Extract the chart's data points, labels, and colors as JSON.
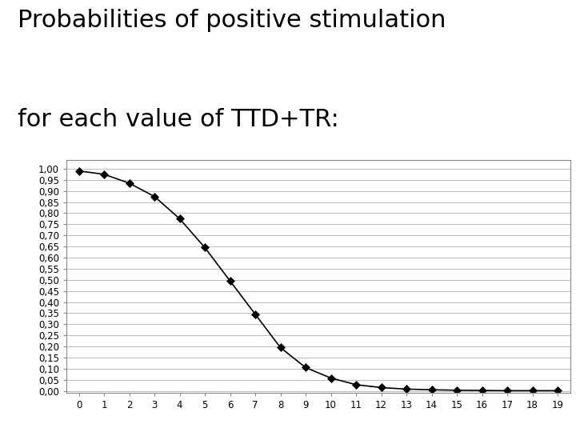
{
  "title_line1": "Probabilities of positive stimulation",
  "title_line2": "for each value of TTD+TR:",
  "x_values": [
    0,
    1,
    2,
    3,
    4,
    5,
    6,
    7,
    8,
    9,
    10,
    11,
    12,
    13,
    14,
    15,
    16,
    17,
    18,
    19
  ],
  "y_values": [
    0.99,
    0.975,
    0.935,
    0.875,
    0.775,
    0.645,
    0.495,
    0.345,
    0.195,
    0.105,
    0.058,
    0.028,
    0.015,
    0.008,
    0.005,
    0.003,
    0.002,
    0.001,
    0.001,
    0.001
  ],
  "yticks": [
    0.0,
    0.05,
    0.1,
    0.15,
    0.2,
    0.25,
    0.3,
    0.35,
    0.4,
    0.45,
    0.5,
    0.55,
    0.6,
    0.65,
    0.7,
    0.75,
    0.8,
    0.85,
    0.9,
    0.95,
    1.0
  ],
  "ytick_labels": [
    "0,00",
    "0,05",
    "0,10",
    "0,15",
    "0,20",
    "0,25",
    "0,30",
    "0,35",
    "0,40",
    "0,45",
    "0,50",
    "0,55",
    "0,60",
    "0,65",
    "0,70",
    "0,75",
    "0,80",
    "0,85",
    "0,90",
    "0,95",
    "1,00"
  ],
  "xlim": [
    -0.5,
    19.5
  ],
  "ylim": [
    -0.01,
    1.04
  ],
  "line_color": "#000000",
  "marker": "D",
  "marker_size": 5,
  "marker_facecolor": "#000000",
  "title_fontsize": 22,
  "tick_fontsize": 8.5,
  "background_color": "#ffffff",
  "grid_color": "#bbbbbb",
  "figure_bg": "#ffffff",
  "spine_color": "#888888"
}
